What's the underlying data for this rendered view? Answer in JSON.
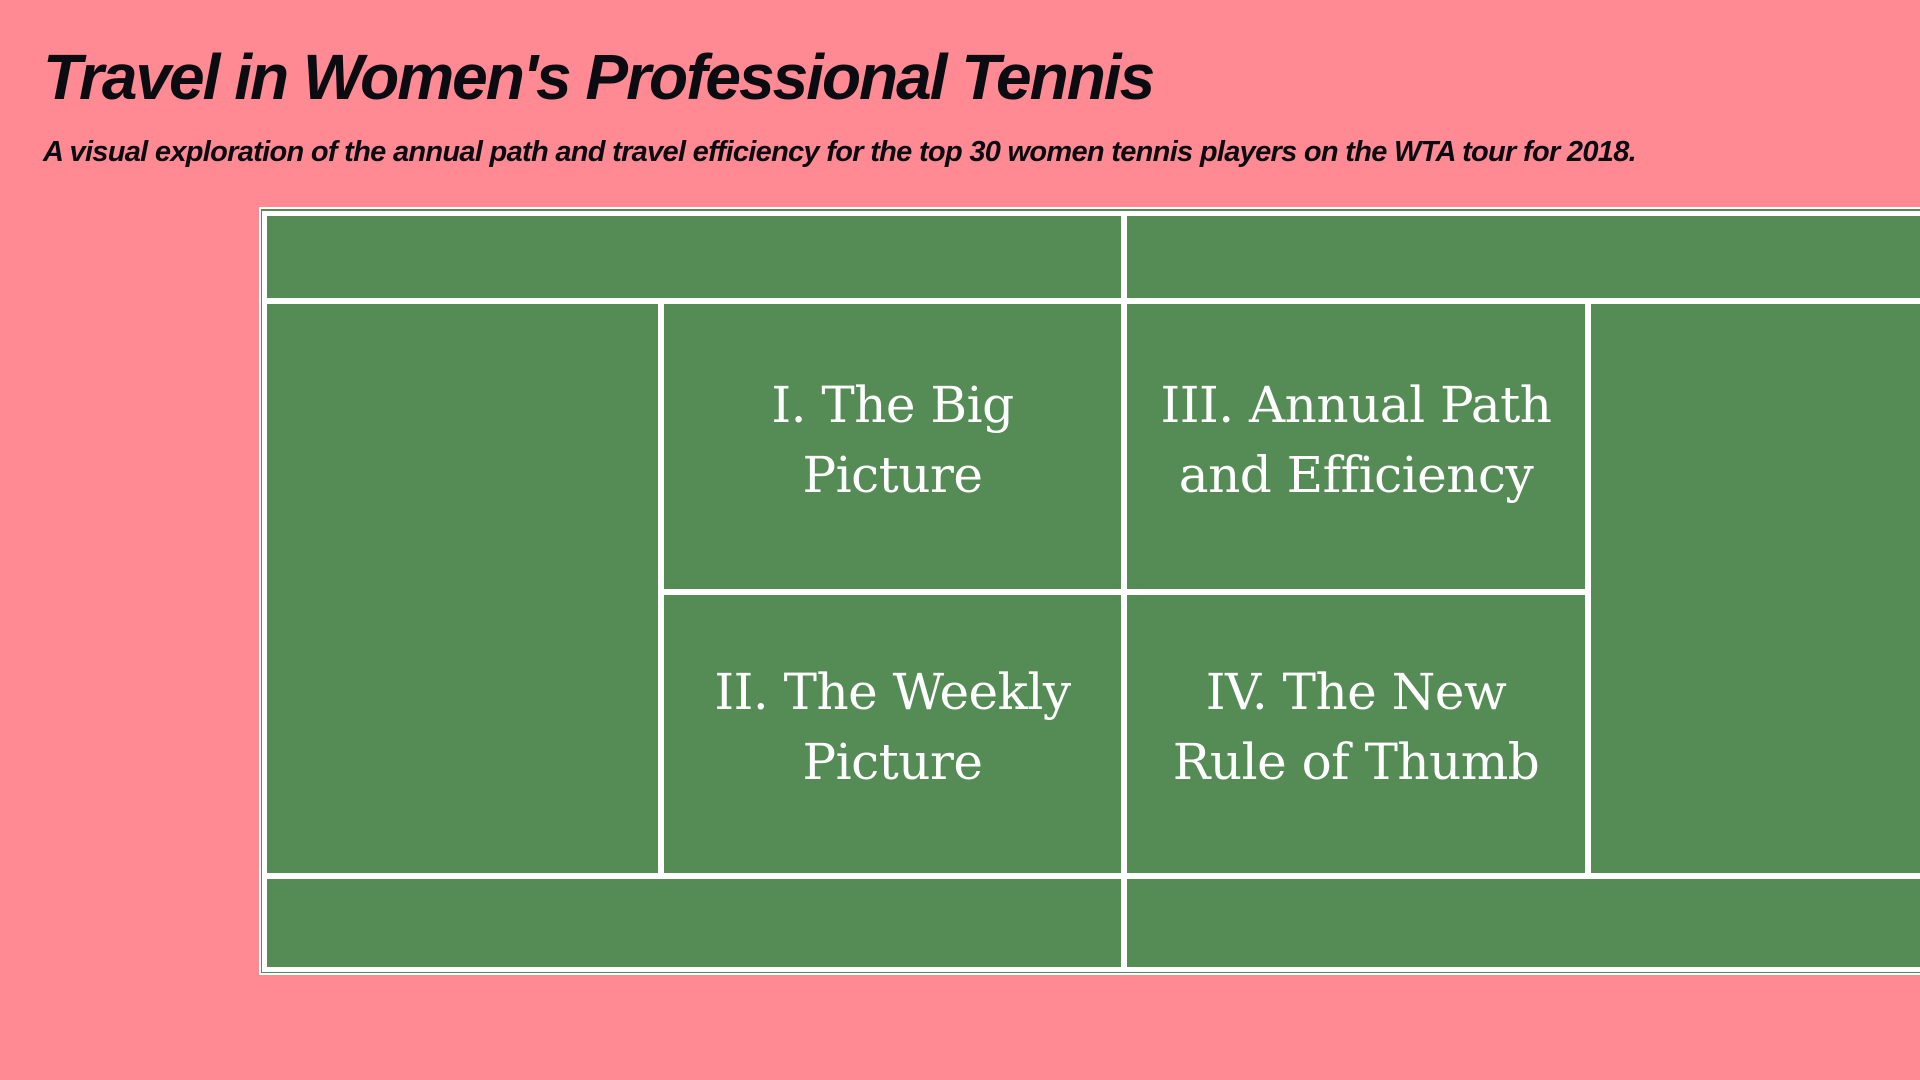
{
  "header": {
    "title": "Travel in Women's Professional Tennis",
    "subtitle": "A visual exploration of the annual path and travel efficiency for the top 30 women tennis players on the WTA tour for 2018."
  },
  "court": {
    "surface_color": "#558b55",
    "line_color": "#ffffff",
    "background_color": "#ff8a93",
    "sections": [
      {
        "id": "big-picture",
        "label": "I. The Big Picture"
      },
      {
        "id": "weekly-picture",
        "label": "II. The Weekly Picture"
      },
      {
        "id": "annual-path",
        "label": "III. Annual Path and Efficiency"
      },
      {
        "id": "rule-of-thumb",
        "label": "IV. The New Rule of Thumb"
      }
    ]
  }
}
